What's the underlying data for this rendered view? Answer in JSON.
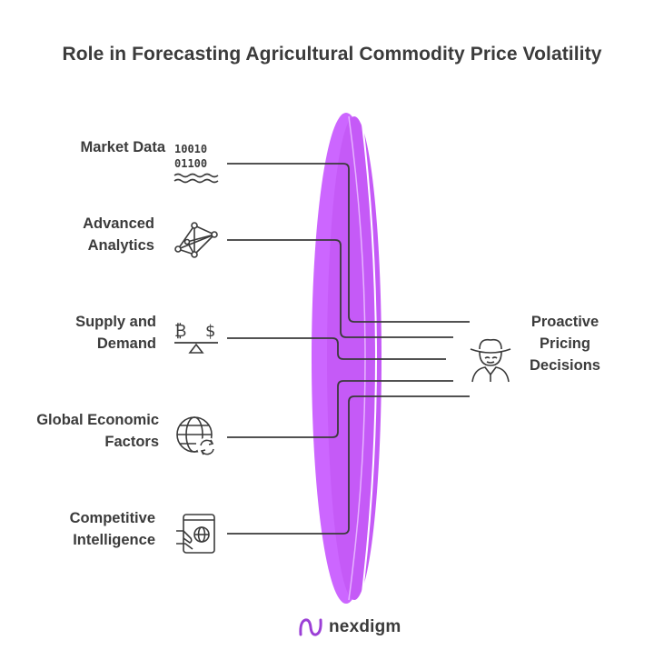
{
  "title": "Role in Forecasting Agricultural Commodity Price Volatility",
  "inputs": [
    {
      "label_lines": [
        "Market Data"
      ],
      "icon": "binary-data-icon",
      "binary": [
        "10010",
        "01100"
      ]
    },
    {
      "label_lines": [
        "Advanced",
        "Analytics"
      ],
      "icon": "network-analytics-icon"
    },
    {
      "label_lines": [
        "Supply and",
        "Demand"
      ],
      "icon": "balance-scale-icon",
      "symbols": [
        "₿",
        "$"
      ]
    },
    {
      "label_lines": [
        "Global Economic",
        "Factors"
      ],
      "icon": "globe-refresh-icon"
    },
    {
      "label_lines": [
        "Competitive",
        "Intelligence"
      ],
      "icon": "passport-hand-icon"
    }
  ],
  "output": {
    "label_lines": [
      "Proactive",
      "Pricing",
      "Decisions"
    ],
    "icon": "farmer-hat-icon"
  },
  "brand": {
    "name": "nexdigm",
    "icon": "nexdigm-logo-icon"
  },
  "colors": {
    "lens": "#cc66ff",
    "line": "#3a3a3a",
    "text": "#3b3b3b"
  }
}
